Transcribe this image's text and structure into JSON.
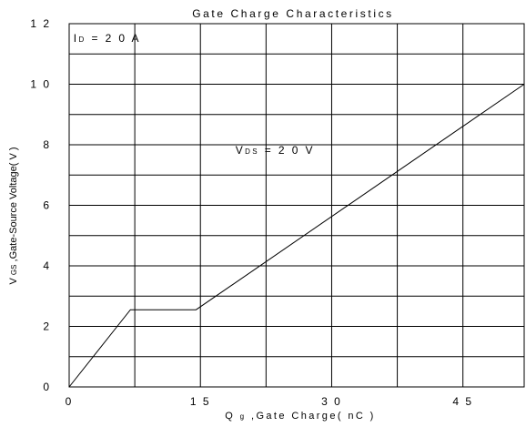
{
  "chart_data": {
    "type": "line",
    "title": "Gate Charge Characteristics",
    "xlabel": {
      "main": "Q",
      "sub": "g",
      "rest": ",Gate Charge( nC )"
    },
    "ylabel": {
      "main": "V",
      "sub": "GS",
      "rest": ",Gate-Source Voltage( V )"
    },
    "xlim": [
      0,
      52
    ],
    "ylim": [
      0,
      12
    ],
    "x_ticks": [
      0,
      15,
      30,
      45
    ],
    "x_tick_labels": [
      "0",
      "1 5",
      "3 0",
      "4 5"
    ],
    "y_ticks": [
      0,
      2,
      4,
      6,
      8,
      10,
      12
    ],
    "y_tick_labels": [
      "0",
      "2",
      "4",
      "6",
      "8",
      "1 0",
      "1 2"
    ],
    "grid": true,
    "grid_x_step": 7.5,
    "grid_y_step": 1,
    "annotations": [
      {
        "id": "id-label",
        "main": "I",
        "sub": "D",
        "rest": " = 2 0 A",
        "x": 0.5,
        "y": 11.4
      },
      {
        "id": "vds-label",
        "main": "V",
        "sub": "DS",
        "rest": " = 2 0 V",
        "x": 19,
        "y": 7.7
      }
    ],
    "series": [
      {
        "x": [
          0,
          7,
          14.5,
          52
        ],
        "y": [
          0,
          2.55,
          2.55,
          10
        ]
      }
    ]
  }
}
